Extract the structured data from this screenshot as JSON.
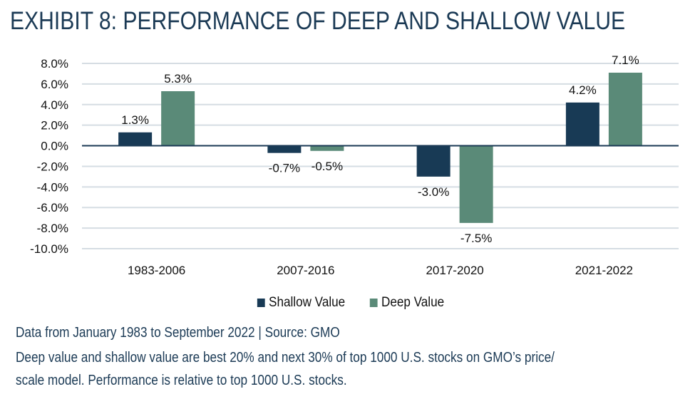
{
  "title": "EXHIBIT 8: PERFORMANCE OF DEEP AND SHALLOW VALUE",
  "colors": {
    "shallow": "#183a55",
    "deep": "#5a8a78",
    "grid": "#d5dde3",
    "axis": "#1b3a55"
  },
  "chart_data": {
    "type": "bar",
    "title": "EXHIBIT 8: PERFORMANCE OF DEEP AND SHALLOW VALUE",
    "xlabel": "",
    "ylabel": "",
    "categories": [
      "1983-2006",
      "2007-2016",
      "2017-2020",
      "2021-2022"
    ],
    "series": [
      {
        "name": "Shallow Value",
        "values": [
          1.3,
          -0.7,
          -3.0,
          4.2
        ],
        "labels": [
          "1.3%",
          "-0.7%",
          "-3.0%",
          "4.2%"
        ]
      },
      {
        "name": "Deep Value",
        "values": [
          5.3,
          -0.5,
          -7.5,
          7.1
        ],
        "labels": [
          "5.3%",
          "-0.5%",
          "-7.5%",
          "7.1%"
        ]
      }
    ],
    "ylim": [
      -10,
      8
    ],
    "yticks": [
      8,
      6,
      4,
      2,
      0,
      -2,
      -4,
      -6,
      -8,
      -10
    ],
    "ytick_labels": [
      "8.0%",
      "6.0%",
      "4.0%",
      "2.0%",
      "0.0%",
      "-2.0%",
      "-4.0%",
      "-6.0%",
      "-8.0%",
      "-10.0%"
    ],
    "grid": true,
    "legend_position": "bottom-center"
  },
  "legend": {
    "shallow_label": "Shallow Value",
    "deep_label": "Deep Value"
  },
  "footnotes": {
    "source": "Data from January 1983 to September 2022 | Source: GMO",
    "line1": "Deep value and shallow value are best 20% and next 30% of top 1000 U.S. stocks on GMO’s price/",
    "line2": "scale model. Performance is relative to top 1000 U.S. stocks."
  }
}
